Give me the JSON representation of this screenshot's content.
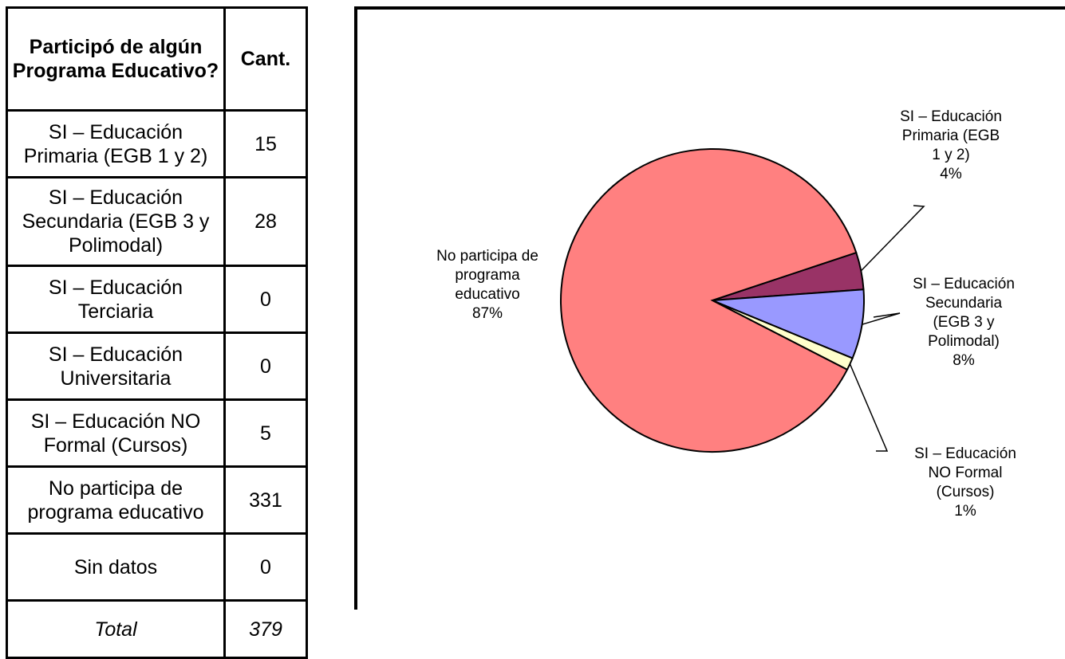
{
  "table": {
    "header": {
      "label": "Participó de algún Programa Educativo?",
      "count": "Cant."
    },
    "rows": [
      {
        "label": "SI – Educación Primaria (EGB 1 y 2)",
        "count": "15"
      },
      {
        "label": "SI – Educación Secundaria (EGB 3 y Polimodal)",
        "count": "28"
      },
      {
        "label": "SI – Educación Terciaria",
        "count": "0"
      },
      {
        "label": "SI – Educación Universitaria",
        "count": "0"
      },
      {
        "label": "SI – Educación NO Formal (Cursos)",
        "count": "5"
      },
      {
        "label": "No participa de programa educativo",
        "count": "331"
      },
      {
        "label": "Sin datos",
        "count": "0"
      }
    ],
    "total": {
      "label": "Total",
      "count": "379"
    }
  },
  "chart_data": {
    "type": "pie",
    "categories": [
      "SI – Educación Primaria (EGB 1 y 2)",
      "SI – Educación Secundaria (EGB 3 y Polimodal)",
      "SI – Educación NO Formal (Cursos)",
      "No participa de programa educativo"
    ],
    "values": [
      15,
      28,
      5,
      331
    ],
    "percent_labels": [
      "4%",
      "8%",
      "1%",
      "87%"
    ],
    "label_lines": [
      [
        "SI – Educación",
        "Primaria (EGB",
        "1 y 2)",
        "4%"
      ],
      [
        "SI – Educación",
        "Secundaria",
        "(EGB 3 y",
        "Polimodal)",
        "8%"
      ],
      [
        "SI – Educación",
        "NO Formal",
        "(Cursos)",
        "1%"
      ],
      [
        "No participa de",
        "programa",
        "educativo",
        "87%"
      ]
    ],
    "colors": [
      "#993366",
      "#9999ff",
      "#ffffcc",
      "#ff8080"
    ],
    "title": "",
    "legend": "none"
  }
}
